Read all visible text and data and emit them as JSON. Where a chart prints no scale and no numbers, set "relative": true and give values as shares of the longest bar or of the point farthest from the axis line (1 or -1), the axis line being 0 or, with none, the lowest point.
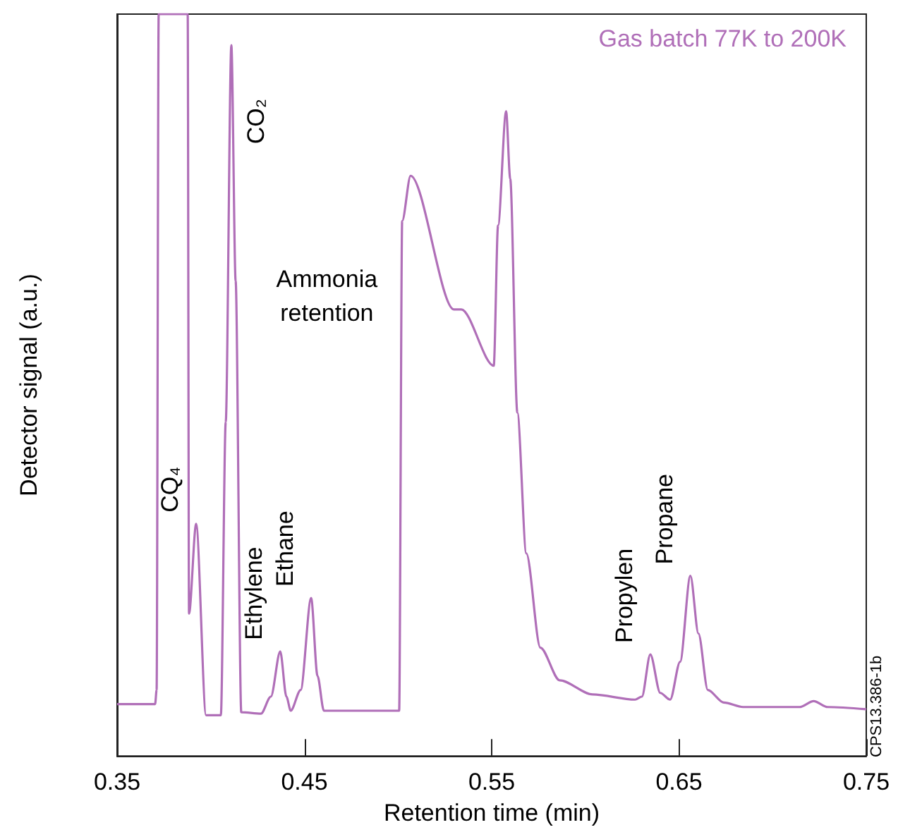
{
  "chart_data": {
    "type": "line",
    "title": "Gas batch 77K to 200K",
    "xlabel": "Retention time (min)",
    "ylabel": "Detector signal (a.u.)",
    "relative": true,
    "xlim": [
      0.35,
      0.75
    ],
    "xticks": [
      0.35,
      0.45,
      0.55,
      0.65,
      0.75
    ],
    "grid": false,
    "marker": "none",
    "series": [
      {
        "color": "#b06fb8",
        "x": [
          0.35,
          0.3703,
          0.3711,
          0.3722,
          0.3877,
          0.3884,
          0.3922,
          0.3975,
          0.4054,
          0.408,
          0.411,
          0.4133,
          0.4163,
          0.4268,
          0.4321,
          0.4371,
          0.4404,
          0.4427,
          0.448,
          0.4536,
          0.457,
          0.4604,
          0.5006,
          0.5022,
          0.5067,
          0.5298,
          0.5338,
          0.5511,
          0.5534,
          0.5577,
          0.5599,
          0.5637,
          0.5685,
          0.576,
          0.5863,
          0.6039,
          0.6265,
          0.6302,
          0.6347,
          0.64,
          0.6453,
          0.6506,
          0.6561,
          0.6604,
          0.6654,
          0.6739,
          0.6842,
          0.7144,
          0.7219,
          0.7294,
          0.75
        ],
        "values": [
          0.07,
          0.07,
          0.089,
          1,
          1,
          0.192,
          0.313,
          0.055,
          0.055,
          0.45,
          0.958,
          0.64,
          0.059,
          0.057,
          0.08,
          0.141,
          0.08,
          0.061,
          0.089,
          0.213,
          0.108,
          0.061,
          0.061,
          0.721,
          0.782,
          0.602,
          0.602,
          0.526,
          0.715,
          0.869,
          0.778,
          0.463,
          0.273,
          0.146,
          0.102,
          0.083,
          0.076,
          0.08,
          0.137,
          0.085,
          0.076,
          0.127,
          0.243,
          0.165,
          0.089,
          0.072,
          0.066,
          0.066,
          0.074,
          0.066,
          0.063
        ]
      }
    ],
    "annotations": [
      {
        "text": "CQ₄",
        "x": 0.3922,
        "y": 0.313
      },
      {
        "text": "CO₂",
        "x": 0.411,
        "y": 0.958
      },
      {
        "text": "Ethylene",
        "x": 0.4371,
        "y": 0.141
      },
      {
        "text": "Ethane",
        "x": 0.4536,
        "y": 0.213
      },
      {
        "text": "Propylen",
        "x": 0.6347,
        "y": 0.137
      },
      {
        "text": "Propane",
        "x": 0.6561,
        "y": 0.243
      },
      "Ammonia\nretention",
      "CPS13.386-1b"
    ]
  }
}
